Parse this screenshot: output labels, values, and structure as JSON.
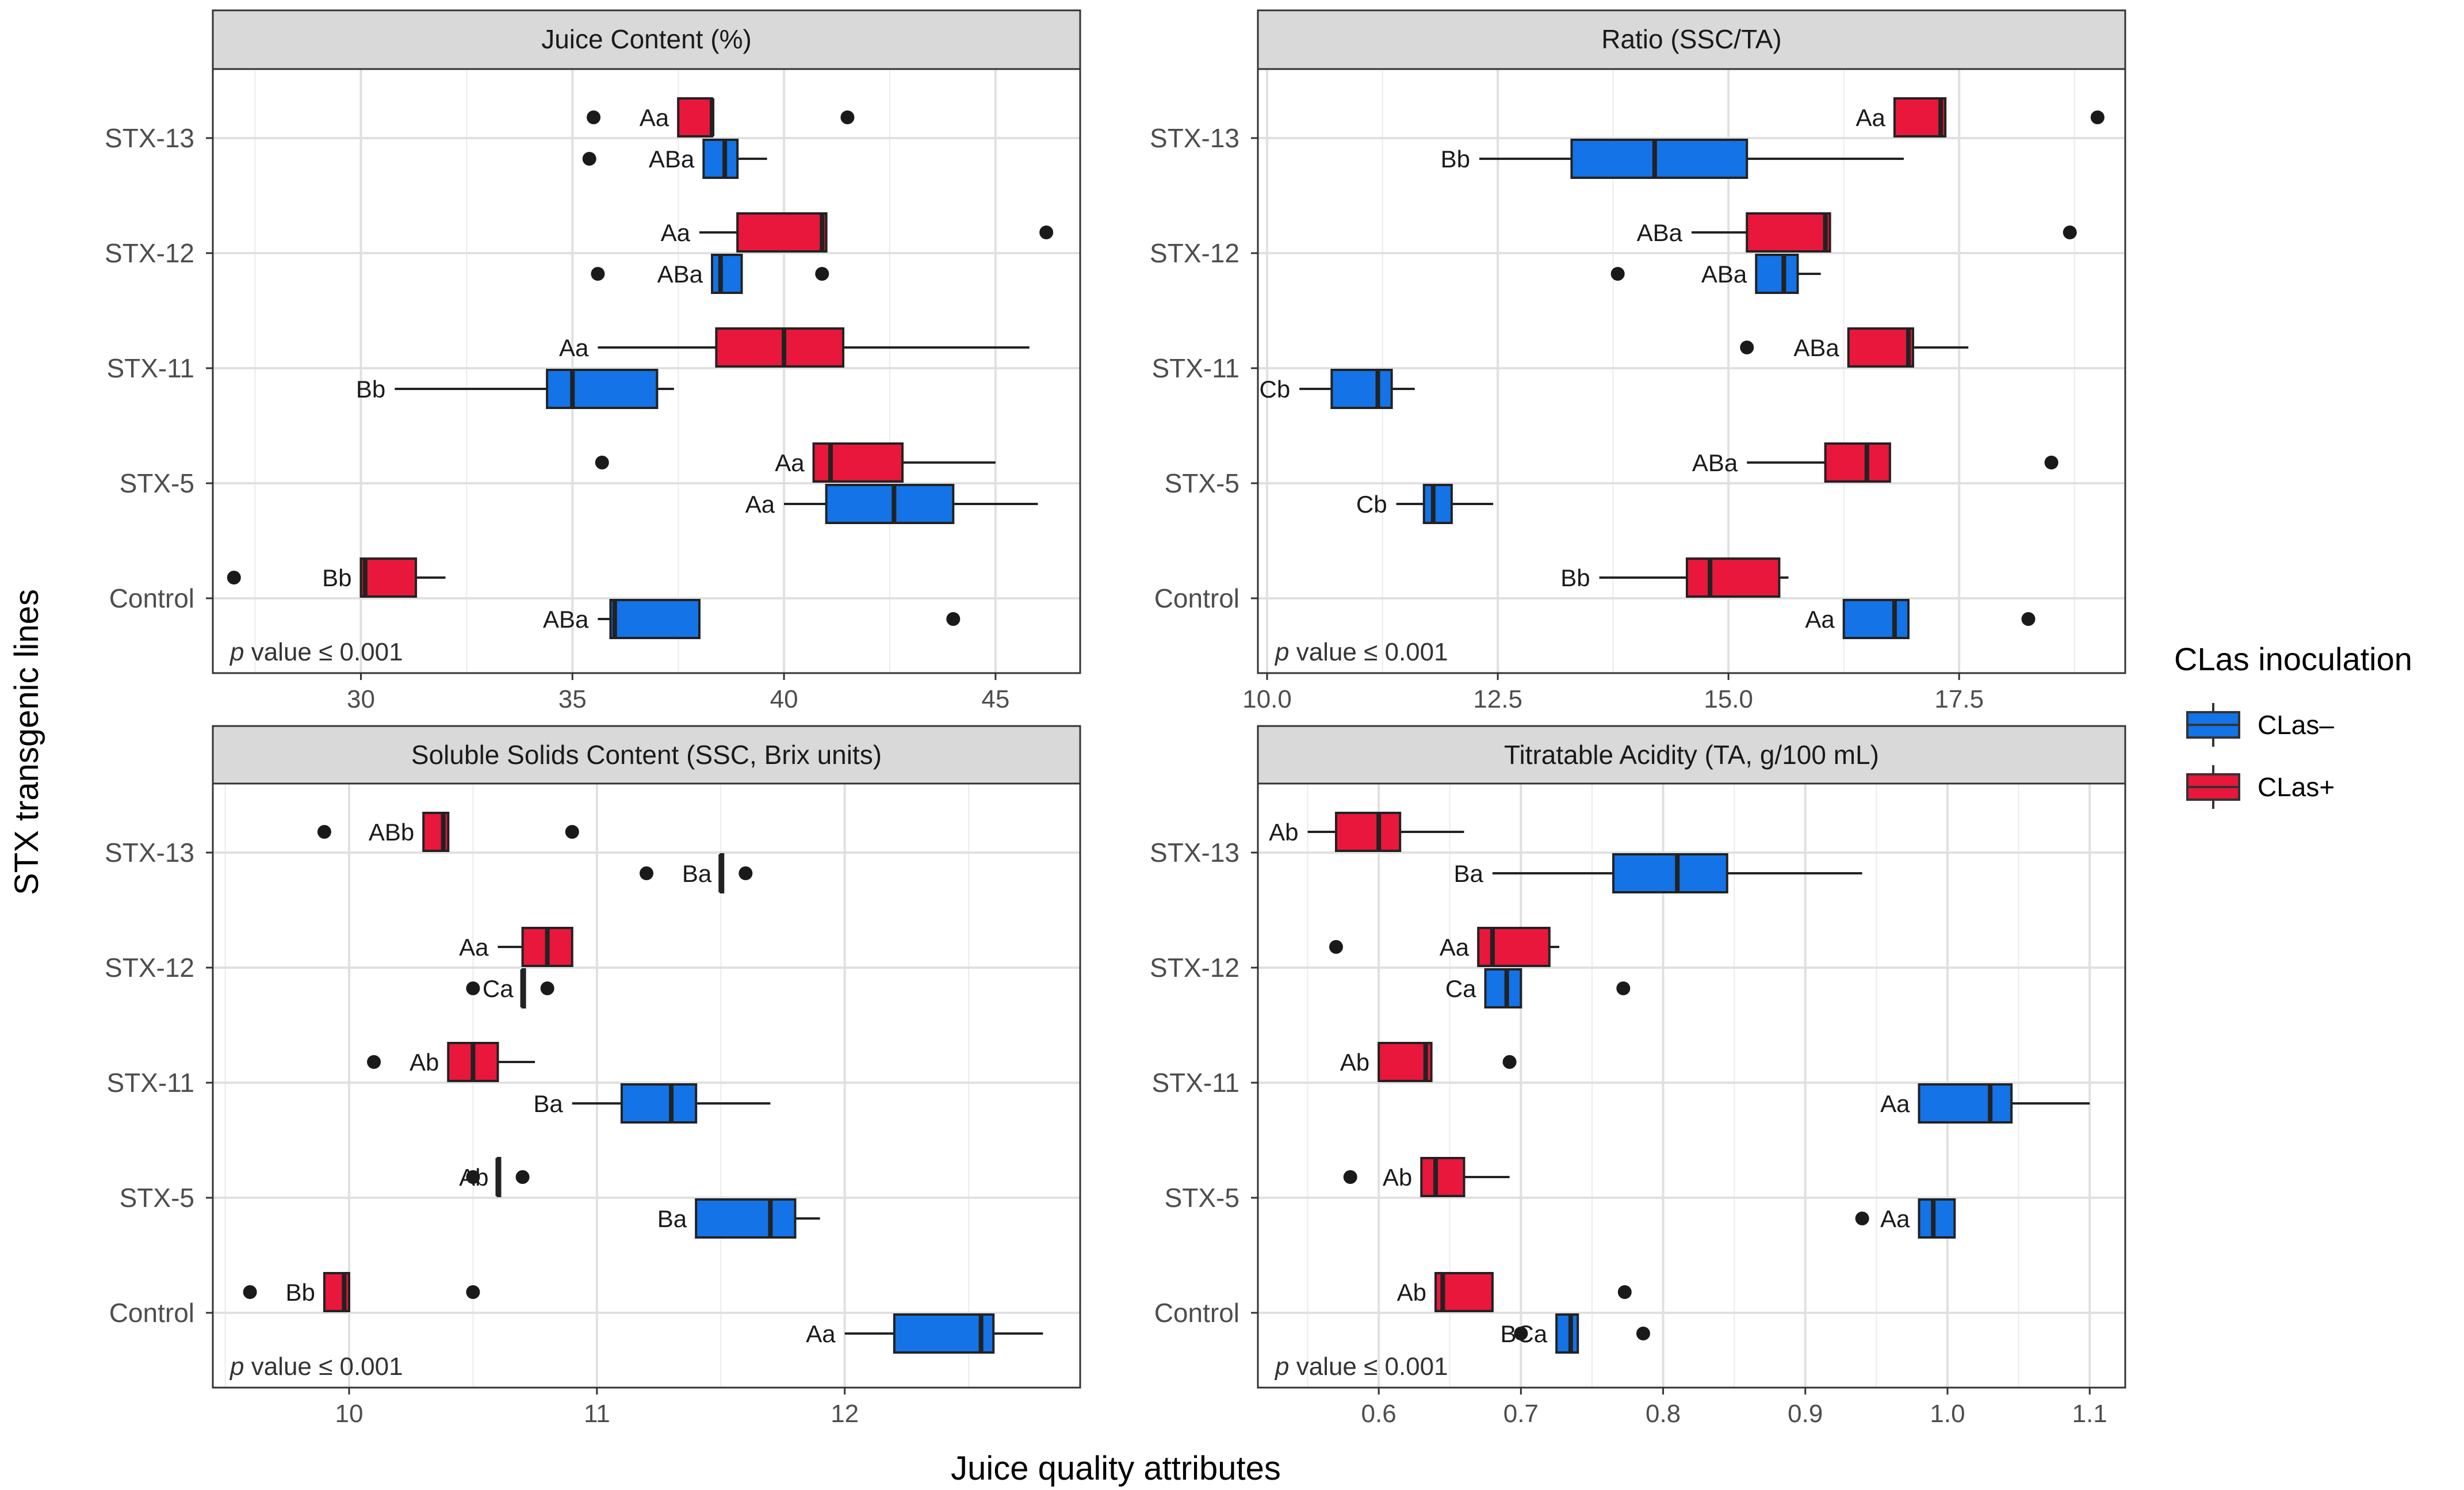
{
  "figure": {
    "x_axis_title": "Juice quality attributes",
    "y_axis_title": "STX transgenic lines",
    "categories": [
      "STX-13",
      "STX-12",
      "STX-11",
      "STX-5",
      "Control"
    ]
  },
  "legend": {
    "title": "CLas inoculation",
    "items": [
      {
        "label": "CLas–",
        "color": "#1473e6"
      },
      {
        "label": "CLas+",
        "color": "#e8173b"
      }
    ]
  },
  "colors": {
    "clas_neg": "#1473e6",
    "clas_pos": "#e8173b",
    "strip": "#d9d9d9",
    "grid": "#ebebeb"
  },
  "chart_data": [
    {
      "type": "boxplot",
      "title": "Juice Content (%)",
      "p_value_text": "value ≤ 0.001",
      "p_symbol": "p",
      "xlim": [
        26.5,
        47
      ],
      "xticks": [
        30,
        35,
        40,
        45
      ],
      "xtick_labels": [
        "30",
        "35",
        "40",
        "45"
      ],
      "boxes": [
        {
          "cat": "STX-13",
          "group": "CLas+",
          "whisker_low": 37.5,
          "q1": 37.5,
          "median": 38.3,
          "q3": 38.3,
          "whisker_high": 38.3,
          "outliers": [
            35.5,
            41.5
          ],
          "label": "Aa"
        },
        {
          "cat": "STX-13",
          "group": "CLas–",
          "whisker_low": 38.1,
          "q1": 38.1,
          "median": 38.6,
          "q3": 38.9,
          "whisker_high": 39.6,
          "outliers": [
            35.4
          ],
          "label": "ABa"
        },
        {
          "cat": "STX-12",
          "group": "CLas+",
          "whisker_low": 38.0,
          "q1": 38.9,
          "median": 40.9,
          "q3": 41.0,
          "whisker_high": 41.0,
          "outliers": [
            46.2
          ],
          "label": "Aa"
        },
        {
          "cat": "STX-12",
          "group": "CLas–",
          "whisker_low": 38.3,
          "q1": 38.3,
          "median": 38.5,
          "q3": 39.0,
          "whisker_high": 39.0,
          "outliers": [
            35.6,
            40.9
          ],
          "label": "ABa"
        },
        {
          "cat": "STX-11",
          "group": "CLas+",
          "whisker_low": 35.6,
          "q1": 38.4,
          "median": 40.0,
          "q3": 41.4,
          "whisker_high": 45.8,
          "outliers": [],
          "label": "Aa"
        },
        {
          "cat": "STX-11",
          "group": "CLas–",
          "whisker_low": 30.8,
          "q1": 34.4,
          "median": 35.0,
          "q3": 37.0,
          "whisker_high": 37.4,
          "outliers": [],
          "label": "Bb"
        },
        {
          "cat": "STX-5",
          "group": "CLas+",
          "whisker_low": 40.7,
          "q1": 40.7,
          "median": 41.1,
          "q3": 42.8,
          "whisker_high": 45.0,
          "outliers": [
            35.7
          ],
          "label": "Aa"
        },
        {
          "cat": "STX-5",
          "group": "CLas–",
          "whisker_low": 40.0,
          "q1": 41.0,
          "median": 42.6,
          "q3": 44.0,
          "whisker_high": 46.0,
          "outliers": [],
          "label": "Aa"
        },
        {
          "cat": "Control",
          "group": "CLas+",
          "whisker_low": 30.0,
          "q1": 30.0,
          "median": 30.1,
          "q3": 31.3,
          "whisker_high": 32.0,
          "outliers": [
            27.0
          ],
          "label": "Bb"
        },
        {
          "cat": "Control",
          "group": "CLas–",
          "whisker_low": 35.6,
          "q1": 35.9,
          "median": 36.0,
          "q3": 38.0,
          "whisker_high": 38.0,
          "outliers": [
            44.0
          ],
          "label": "ABa"
        }
      ]
    },
    {
      "type": "boxplot",
      "title": "Ratio (SSC/TA)",
      "p_value_text": "value ≤ 0.001",
      "p_symbol": "p",
      "xlim": [
        9.9,
        19.3
      ],
      "xticks": [
        10.0,
        12.5,
        15.0,
        17.5
      ],
      "xtick_labels": [
        "10.0",
        "12.5",
        "15.0",
        "17.5"
      ],
      "boxes": [
        {
          "cat": "STX-13",
          "group": "CLas+",
          "whisker_low": 16.8,
          "q1": 16.8,
          "median": 17.3,
          "q3": 17.35,
          "whisker_high": 17.35,
          "outliers": [
            19.0
          ],
          "label": "Aa"
        },
        {
          "cat": "STX-13",
          "group": "CLas–",
          "whisker_low": 12.3,
          "q1": 13.3,
          "median": 14.2,
          "q3": 15.2,
          "whisker_high": 16.9,
          "outliers": [],
          "label": "Bb"
        },
        {
          "cat": "STX-12",
          "group": "CLas+",
          "whisker_low": 14.6,
          "q1": 15.2,
          "median": 16.05,
          "q3": 16.1,
          "whisker_high": 16.1,
          "outliers": [
            18.7
          ],
          "label": "ABa"
        },
        {
          "cat": "STX-12",
          "group": "CLas–",
          "whisker_low": 15.3,
          "q1": 15.3,
          "median": 15.6,
          "q3": 15.75,
          "whisker_high": 16.0,
          "outliers": [
            13.8
          ],
          "label": "ABa"
        },
        {
          "cat": "STX-11",
          "group": "CLas+",
          "whisker_low": 16.3,
          "q1": 16.3,
          "median": 16.95,
          "q3": 17.0,
          "whisker_high": 17.6,
          "outliers": [
            15.2
          ],
          "label": "ABa"
        },
        {
          "cat": "STX-11",
          "group": "CLas–",
          "whisker_low": 10.35,
          "q1": 10.7,
          "median": 11.2,
          "q3": 11.35,
          "whisker_high": 11.6,
          "outliers": [],
          "label": "Cb"
        },
        {
          "cat": "STX-5",
          "group": "CLas+",
          "whisker_low": 15.2,
          "q1": 16.05,
          "median": 16.5,
          "q3": 16.75,
          "whisker_high": 16.75,
          "outliers": [
            18.5
          ],
          "label": "ABa"
        },
        {
          "cat": "STX-5",
          "group": "CLas–",
          "whisker_low": 11.4,
          "q1": 11.7,
          "median": 11.8,
          "q3": 12.0,
          "whisker_high": 12.45,
          "outliers": [],
          "label": "Cb"
        },
        {
          "cat": "Control",
          "group": "CLas+",
          "whisker_low": 13.6,
          "q1": 14.55,
          "median": 14.8,
          "q3": 15.55,
          "whisker_high": 15.65,
          "outliers": [],
          "label": "Bb"
        },
        {
          "cat": "Control",
          "group": "CLas–",
          "whisker_low": 16.25,
          "q1": 16.25,
          "median": 16.8,
          "q3": 16.95,
          "whisker_high": 16.95,
          "outliers": [
            18.25
          ],
          "label": "Aa"
        }
      ]
    },
    {
      "type": "boxplot",
      "title": "Soluble Solids Content (SSC, Brix units)",
      "p_value_text": "value ≤ 0.001",
      "p_symbol": "p",
      "xlim": [
        9.45,
        12.95
      ],
      "xticks": [
        10,
        11,
        12
      ],
      "xtick_labels": [
        "10",
        "11",
        "12"
      ],
      "boxes": [
        {
          "cat": "STX-13",
          "group": "CLas+",
          "whisker_low": 10.3,
          "q1": 10.3,
          "median": 10.38,
          "q3": 10.4,
          "whisker_high": 10.4,
          "outliers": [
            9.9,
            10.9
          ],
          "label": "ABb"
        },
        {
          "cat": "STX-13",
          "group": "CLas–",
          "whisker_low": 11.5,
          "q1": 11.5,
          "median": 11.5,
          "q3": 11.5,
          "whisker_high": 11.5,
          "outliers": [
            11.2,
            11.6
          ],
          "label": "Ba"
        },
        {
          "cat": "STX-12",
          "group": "CLas+",
          "whisker_low": 10.6,
          "q1": 10.7,
          "median": 10.8,
          "q3": 10.9,
          "whisker_high": 10.9,
          "outliers": [],
          "label": "Aa"
        },
        {
          "cat": "STX-12",
          "group": "CLas–",
          "whisker_low": 10.7,
          "q1": 10.7,
          "median": 10.7,
          "q3": 10.7,
          "whisker_high": 10.7,
          "outliers": [
            10.5,
            10.8
          ],
          "label": "Ca"
        },
        {
          "cat": "STX-11",
          "group": "CLas+",
          "whisker_low": 10.4,
          "q1": 10.4,
          "median": 10.5,
          "q3": 10.6,
          "whisker_high": 10.75,
          "outliers": [
            10.1
          ],
          "label": "Ab"
        },
        {
          "cat": "STX-11",
          "group": "CLas–",
          "whisker_low": 10.9,
          "q1": 11.1,
          "median": 11.3,
          "q3": 11.4,
          "whisker_high": 11.7,
          "outliers": [],
          "label": "Ba"
        },
        {
          "cat": "STX-5",
          "group": "CLas+",
          "whisker_low": 10.6,
          "q1": 10.6,
          "median": 10.6,
          "q3": 10.6,
          "whisker_high": 10.6,
          "outliers": [
            10.5,
            10.7
          ],
          "label": "Ab"
        },
        {
          "cat": "STX-5",
          "group": "CLas–",
          "whisker_low": 11.4,
          "q1": 11.4,
          "median": 11.7,
          "q3": 11.8,
          "whisker_high": 11.9,
          "outliers": [],
          "label": "Ba"
        },
        {
          "cat": "Control",
          "group": "CLas+",
          "whisker_low": 9.9,
          "q1": 9.9,
          "median": 9.98,
          "q3": 10.0,
          "whisker_high": 10.0,
          "outliers": [
            9.6,
            10.5
          ],
          "label": "Bb"
        },
        {
          "cat": "Control",
          "group": "CLas–",
          "whisker_low": 12.0,
          "q1": 12.2,
          "median": 12.55,
          "q3": 12.6,
          "whisker_high": 12.8,
          "outliers": [],
          "label": "Aa"
        }
      ]
    },
    {
      "type": "boxplot",
      "title": "Titratable Acidity (TA, g/100 mL)",
      "p_value_text": "value ≤ 0.001",
      "p_symbol": "p",
      "xlim": [
        0.515,
        1.125
      ],
      "xticks": [
        0.6,
        0.7,
        0.8,
        0.9,
        1.0,
        1.1
      ],
      "xtick_labels": [
        "0.6",
        "0.7",
        "0.8",
        "0.9",
        "1.0",
        "1.1"
      ],
      "boxes": [
        {
          "cat": "STX-13",
          "group": "CLas+",
          "whisker_low": 0.55,
          "q1": 0.57,
          "median": 0.6,
          "q3": 0.615,
          "whisker_high": 0.66,
          "outliers": [],
          "label": "Ab"
        },
        {
          "cat": "STX-13",
          "group": "CLas–",
          "whisker_low": 0.68,
          "q1": 0.765,
          "median": 0.81,
          "q3": 0.845,
          "whisker_high": 0.94,
          "outliers": [],
          "label": "Ba"
        },
        {
          "cat": "STX-12",
          "group": "CLas+",
          "whisker_low": 0.67,
          "q1": 0.67,
          "median": 0.68,
          "q3": 0.72,
          "whisker_high": 0.727,
          "outliers": [
            0.57
          ],
          "label": "Aa"
        },
        {
          "cat": "STX-12",
          "group": "CLas–",
          "whisker_low": 0.675,
          "q1": 0.675,
          "median": 0.69,
          "q3": 0.7,
          "whisker_high": 0.7,
          "outliers": [
            0.772
          ],
          "label": "Ca"
        },
        {
          "cat": "STX-11",
          "group": "CLas+",
          "whisker_low": 0.6,
          "q1": 0.6,
          "median": 0.633,
          "q3": 0.637,
          "whisker_high": 0.637,
          "outliers": [
            0.692
          ],
          "label": "Ab"
        },
        {
          "cat": "STX-11",
          "group": "CLas–",
          "whisker_low": 0.98,
          "q1": 0.98,
          "median": 1.03,
          "q3": 1.045,
          "whisker_high": 1.1,
          "outliers": [],
          "label": "Aa"
        },
        {
          "cat": "STX-5",
          "group": "CLas+",
          "whisker_low": 0.63,
          "q1": 0.63,
          "median": 0.64,
          "q3": 0.66,
          "whisker_high": 0.692,
          "outliers": [
            0.58
          ],
          "label": "Ab"
        },
        {
          "cat": "STX-5",
          "group": "CLas–",
          "whisker_low": 0.98,
          "q1": 0.98,
          "median": 0.99,
          "q3": 1.005,
          "whisker_high": 1.005,
          "outliers": [
            0.94
          ],
          "label": "Aa"
        },
        {
          "cat": "Control",
          "group": "CLas+",
          "whisker_low": 0.64,
          "q1": 0.64,
          "median": 0.645,
          "q3": 0.68,
          "whisker_high": 0.68,
          "outliers": [
            0.773
          ],
          "label": "Ab"
        },
        {
          "cat": "Control",
          "group": "CLas–",
          "whisker_low": 0.725,
          "q1": 0.725,
          "median": 0.735,
          "q3": 0.74,
          "whisker_high": 0.74,
          "outliers": [
            0.7,
            0.786
          ],
          "label": "BCa"
        }
      ]
    }
  ]
}
